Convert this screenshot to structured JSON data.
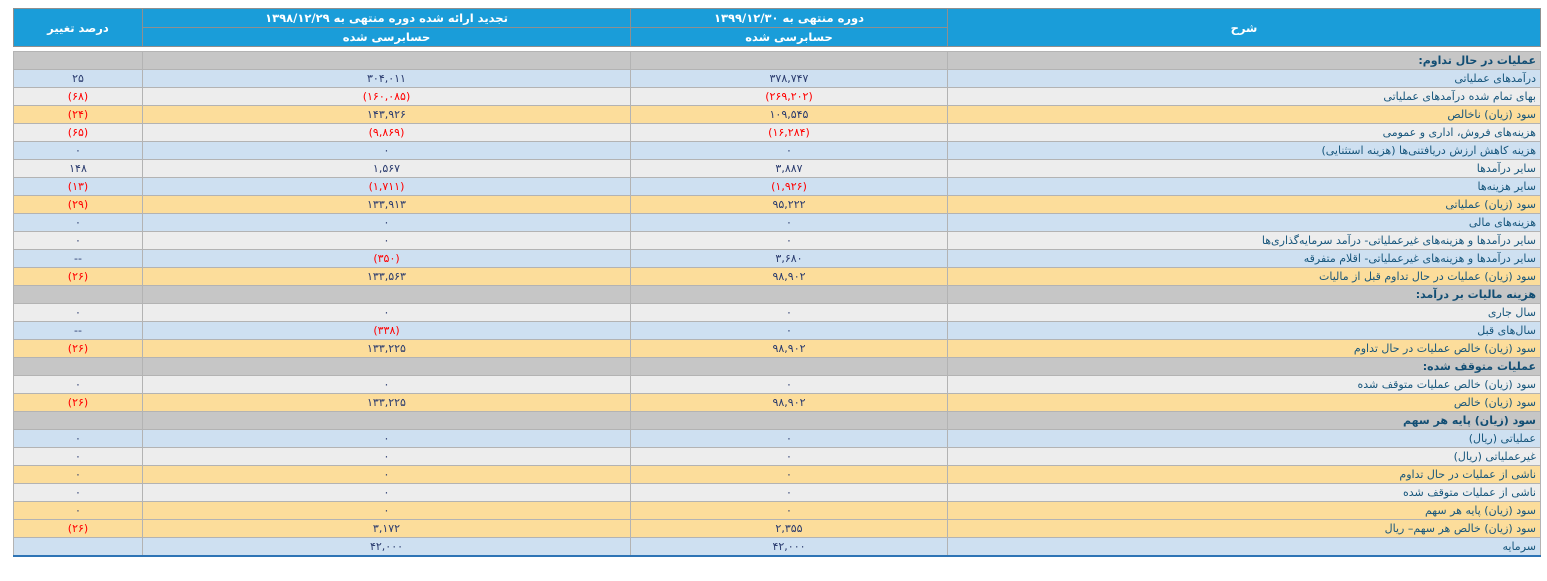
{
  "header": {
    "col_desc": "شرح",
    "col_current": {
      "title": "دوره منتهی به ۱۳۹۹/۱۲/۳۰",
      "sub": "حسابرسی شده"
    },
    "col_restated": {
      "title": "تجدید ارائه شده دوره منتهی به ۱۳۹۸/۱۲/۲۹",
      "sub": "حسابرسی شده"
    },
    "col_change": "درصد تغییر"
  },
  "colors": {
    "header_bg": "#1A9DD9",
    "section_row_bg": "#C6C6C6",
    "blue_row_bg": "#CEE0F1",
    "gray_row_bg": "#EDEDED",
    "orange_row_bg": "#FCDD9B",
    "label_text": "#17567C",
    "number_text": "#2A3B6E",
    "negative_text": "#FF0000",
    "bottom_border": "#2E74B5"
  },
  "rows": [
    {
      "type": "section",
      "label": "عملیات در حال تداوم:",
      "current": "",
      "restated": "",
      "change": ""
    },
    {
      "type": "blue",
      "label": "درآمدهای عملیاتی",
      "current": "۳۷۸,۷۴۷",
      "restated": "۳۰۴,۰۱۱",
      "change": "۲۵"
    },
    {
      "type": "gray",
      "label": "بهای تمام شده درآمدهای عملیاتی",
      "current": "(۲۶۹,۲۰۲)",
      "restated": "(۱۶۰,۰۸۵)",
      "change": "(۶۸)"
    },
    {
      "type": "orange",
      "label": "سود (زیان) ناخالص",
      "current": "۱۰۹,۵۴۵",
      "restated": "۱۴۳,۹۲۶",
      "change": "(۲۴)"
    },
    {
      "type": "gray",
      "label": "هزینه‌های فروش، اداری و عمومی",
      "current": "(۱۶,۲۸۴)",
      "restated": "(۹,۸۶۹)",
      "change": "(۶۵)"
    },
    {
      "type": "blue",
      "label": "هزینه کاهش ارزش دریافتنی‌ها (هزینه استثنایی)",
      "current": "۰",
      "restated": "۰",
      "change": "۰"
    },
    {
      "type": "gray",
      "label": "سایر درآمدها",
      "current": "۳,۸۸۷",
      "restated": "۱,۵۶۷",
      "change": "۱۴۸"
    },
    {
      "type": "blue",
      "label": "سایر هزینه‌ها",
      "current": "(۱,۹۲۶)",
      "restated": "(۱,۷۱۱)",
      "change": "(۱۳)"
    },
    {
      "type": "orange",
      "label": "سود (زیان) عملیاتی",
      "current": "۹۵,۲۲۲",
      "restated": "۱۳۳,۹۱۳",
      "change": "(۲۹)"
    },
    {
      "type": "blue",
      "label": "هزینه‌های مالی",
      "current": "۰",
      "restated": "۰",
      "change": "۰"
    },
    {
      "type": "gray",
      "label": "سایر درآمدها و هزینه‌های غیرعملیاتی- درآمد سرمایه‌گذاری‌ها",
      "current": "۰",
      "restated": "۰",
      "change": "۰"
    },
    {
      "type": "blue",
      "label": "سایر درآمدها و هزینه‌های غیرعملیاتی- اقلام متفرقه",
      "current": "۳,۶۸۰",
      "restated": "(۳۵۰)",
      "change": "--"
    },
    {
      "type": "orange",
      "label": "سود (زیان) عملیات در حال تداوم قبل از مالیات",
      "current": "۹۸,۹۰۲",
      "restated": "۱۳۳,۵۶۳",
      "change": "(۲۶)"
    },
    {
      "type": "section",
      "label": "هزینه مالیات بر درآمد:",
      "current": "",
      "restated": "",
      "change": ""
    },
    {
      "type": "gray",
      "label": "سال جاری",
      "current": "۰",
      "restated": "۰",
      "change": "۰"
    },
    {
      "type": "blue",
      "label": "سال‌های قبل",
      "current": "۰",
      "restated": "(۳۳۸)",
      "change": "--"
    },
    {
      "type": "orange",
      "label": "سود (زیان) خالص عملیات در حال تداوم",
      "current": "۹۸,۹۰۲",
      "restated": "۱۳۳,۲۲۵",
      "change": "(۲۶)"
    },
    {
      "type": "section",
      "label": "عملیات متوقف شده:",
      "current": "",
      "restated": "",
      "change": ""
    },
    {
      "type": "gray",
      "label": "سود (زیان) خالص عملیات متوقف شده",
      "current": "۰",
      "restated": "۰",
      "change": "۰"
    },
    {
      "type": "orange",
      "label": "سود (زیان) خالص",
      "current": "۹۸,۹۰۲",
      "restated": "۱۳۳,۲۲۵",
      "change": "(۲۶)"
    },
    {
      "type": "section",
      "label": "سود (زیان) پایه هر سهم",
      "current": "",
      "restated": "",
      "change": ""
    },
    {
      "type": "blue",
      "label": "عملیاتی (ریال)",
      "current": "۰",
      "restated": "۰",
      "change": "۰"
    },
    {
      "type": "gray",
      "label": "غیرعملیاتی (ریال)",
      "current": "۰",
      "restated": "۰",
      "change": "۰"
    },
    {
      "type": "orange",
      "label": "ناشی از عملیات در حال تداوم",
      "current": "۰",
      "restated": "۰",
      "change": "۰"
    },
    {
      "type": "gray",
      "label": "ناشی از عملیات متوقف شده",
      "current": "۰",
      "restated": "۰",
      "change": "۰"
    },
    {
      "type": "orange",
      "label": "سود (زیان) پایه هر سهم",
      "current": "۰",
      "restated": "۰",
      "change": "۰"
    },
    {
      "type": "orange",
      "label": "سود (زیان) خالص هر سهم– ریال",
      "current": "۲,۳۵۵",
      "restated": "۳,۱۷۲",
      "change": "(۲۶)"
    },
    {
      "type": "blue",
      "label": "سرمایه",
      "current": "۴۲,۰۰۰",
      "restated": "۴۲,۰۰۰",
      "change": ""
    }
  ]
}
